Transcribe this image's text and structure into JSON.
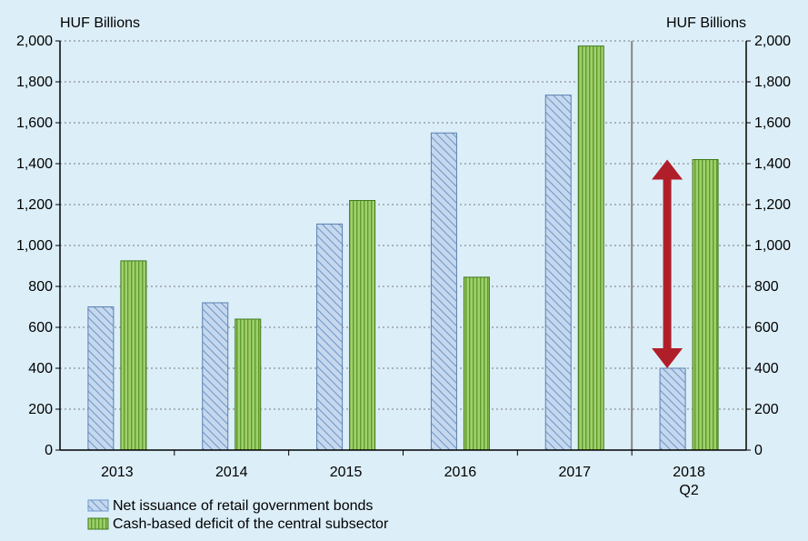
{
  "chart_data": {
    "type": "bar",
    "left_axis_unit": "HUF Billions",
    "right_axis_unit": "HUF Billions",
    "categories": [
      {
        "label": "2013",
        "sublabel": ""
      },
      {
        "label": "2014",
        "sublabel": ""
      },
      {
        "label": "2015",
        "sublabel": ""
      },
      {
        "label": "2016",
        "sublabel": ""
      },
      {
        "label": "2017",
        "sublabel": ""
      },
      {
        "label": "2018",
        "sublabel": "Q2"
      }
    ],
    "series": [
      {
        "name": "Net issuance of retail government bonds",
        "values": [
          700,
          720,
          1105,
          1550,
          1735,
          400
        ],
        "color": "#c5d8ee",
        "pattern": "diagonal-hatch"
      },
      {
        "name": "Cash-based deficit of the central subsector",
        "values": [
          925,
          640,
          1220,
          845,
          1975,
          1420
        ],
        "color": "#9fd06c",
        "pattern": "vertical-stripes"
      }
    ],
    "ylim": [
      0,
      2000
    ],
    "yticks": [
      "0",
      "200",
      "400",
      "600",
      "800",
      "1,000",
      "1,200",
      "1,400",
      "1,600",
      "1,800",
      "2,000"
    ],
    "grid": true,
    "separator_before_category": "2018",
    "annotation": {
      "type": "double-arrow",
      "category": "2018",
      "from": 400,
      "to": 1420,
      "color": "#b01e2a"
    },
    "legend_position": "bottom-left"
  }
}
